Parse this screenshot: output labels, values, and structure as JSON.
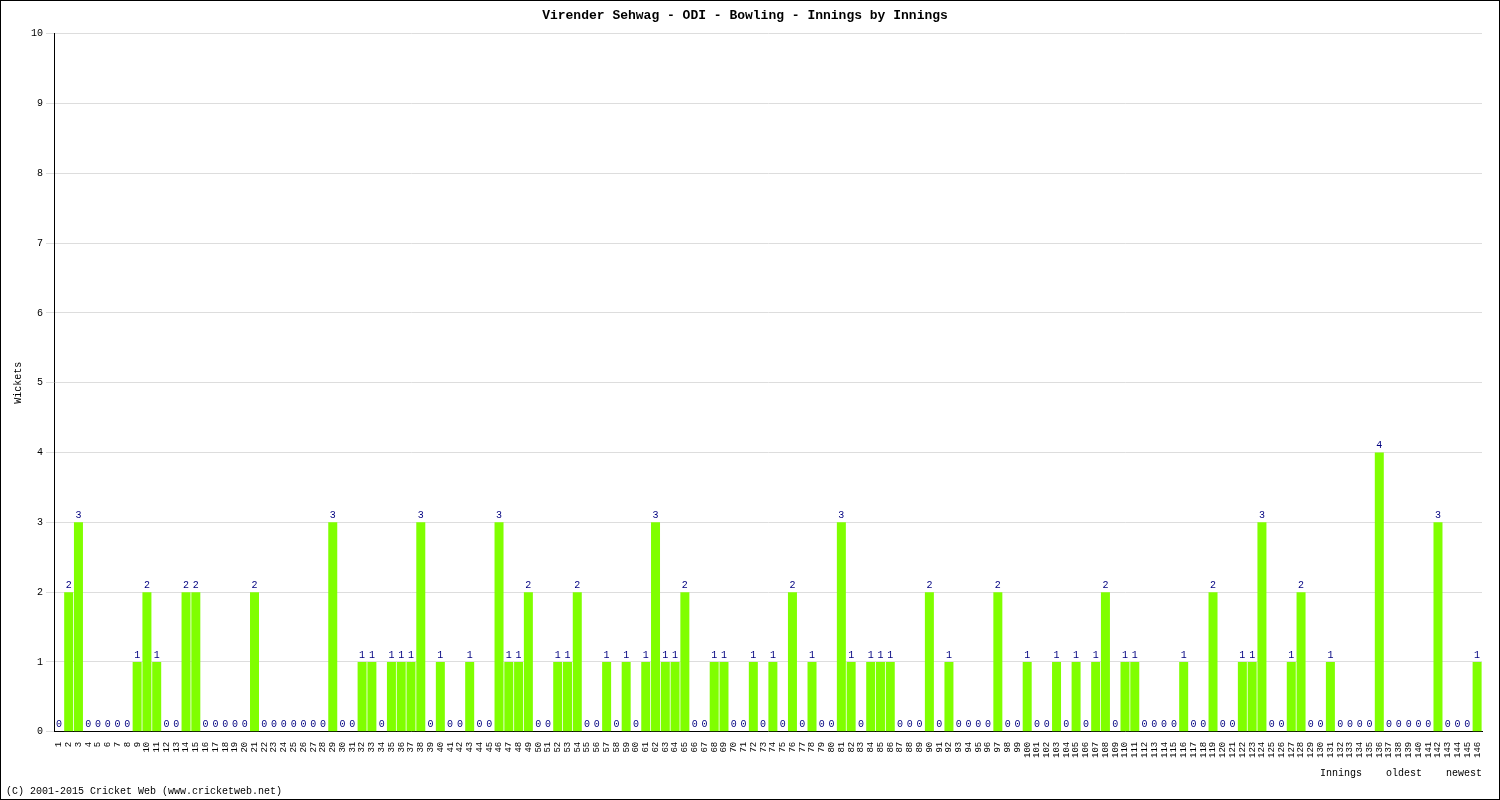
{
  "chart_data": {
    "type": "bar",
    "title": "Virender Sehwag - ODI - Bowling - Innings by Innings",
    "y_label": "Wickets",
    "x_label": "Innings",
    "annotations": [
      "oldest",
      "newest"
    ],
    "footer": "(C) 2001-2015 Cricket Web (www.cricketweb.net)",
    "categories": [
      "1",
      "2",
      "3",
      "4",
      "5",
      "6",
      "7",
      "8",
      "9",
      "10",
      "11",
      "12",
      "13",
      "14",
      "15",
      "16",
      "17",
      "18",
      "19",
      "20",
      "21",
      "22",
      "23",
      "24",
      "25",
      "26",
      "27",
      "28",
      "29",
      "30",
      "31",
      "32",
      "33",
      "34",
      "35",
      "36",
      "37",
      "38",
      "39",
      "40",
      "41",
      "42",
      "43",
      "44",
      "45",
      "46",
      "47",
      "48",
      "49",
      "50",
      "51",
      "52",
      "53",
      "54",
      "55",
      "56",
      "57",
      "58",
      "59",
      "60",
      "61",
      "62",
      "63",
      "64",
      "65",
      "66",
      "67",
      "68",
      "69",
      "70",
      "71",
      "72",
      "73",
      "74",
      "75",
      "76",
      "77",
      "78",
      "79",
      "80",
      "81",
      "82",
      "83",
      "84",
      "85",
      "86",
      "87",
      "88",
      "89",
      "90",
      "91",
      "92",
      "93",
      "94",
      "95",
      "96",
      "97",
      "98",
      "99",
      "100",
      "101",
      "102",
      "103",
      "104",
      "105",
      "106",
      "107",
      "108",
      "109",
      "110",
      "111",
      "112",
      "113",
      "114",
      "115",
      "116",
      "117",
      "118",
      "119",
      "120",
      "121",
      "122",
      "123",
      "124",
      "125",
      "126",
      "127",
      "128",
      "129",
      "130",
      "131",
      "132",
      "133",
      "134",
      "135",
      "136",
      "137",
      "138",
      "139",
      "140",
      "141",
      "142",
      "143",
      "144",
      "145",
      "146"
    ],
    "values": [
      0,
      2,
      3,
      0,
      0,
      0,
      0,
      0,
      1,
      2,
      1,
      0,
      0,
      2,
      2,
      0,
      0,
      0,
      0,
      0,
      2,
      0,
      0,
      0,
      0,
      0,
      0,
      0,
      3,
      0,
      0,
      1,
      1,
      0,
      1,
      1,
      1,
      3,
      0,
      1,
      0,
      0,
      1,
      0,
      0,
      3,
      1,
      1,
      2,
      0,
      0,
      1,
      1,
      2,
      0,
      0,
      1,
      0,
      1,
      0,
      1,
      3,
      1,
      1,
      2,
      0,
      0,
      1,
      1,
      0,
      0,
      1,
      0,
      1,
      0,
      2,
      0,
      1,
      0,
      0,
      3,
      1,
      0,
      1,
      1,
      1,
      0,
      0,
      0,
      2,
      0,
      1,
      0,
      0,
      0,
      0,
      2,
      0,
      0,
      1,
      0,
      0,
      1,
      0,
      1,
      0,
      1,
      2,
      0,
      1,
      1,
      0,
      0,
      0,
      0,
      1,
      0,
      0,
      2,
      0,
      0,
      1,
      1,
      3,
      0,
      0,
      1,
      2,
      0,
      0,
      1,
      0,
      0,
      0,
      0,
      4,
      0,
      0,
      0,
      0,
      0,
      3,
      0,
      0,
      0,
      1
    ],
    "color": "#80ff00",
    "ylim": [
      0,
      10
    ],
    "yticks": [
      0,
      1,
      2,
      3,
      4,
      5,
      6,
      7,
      8,
      9,
      10
    ],
    "grid": true,
    "data_labels": true
  }
}
